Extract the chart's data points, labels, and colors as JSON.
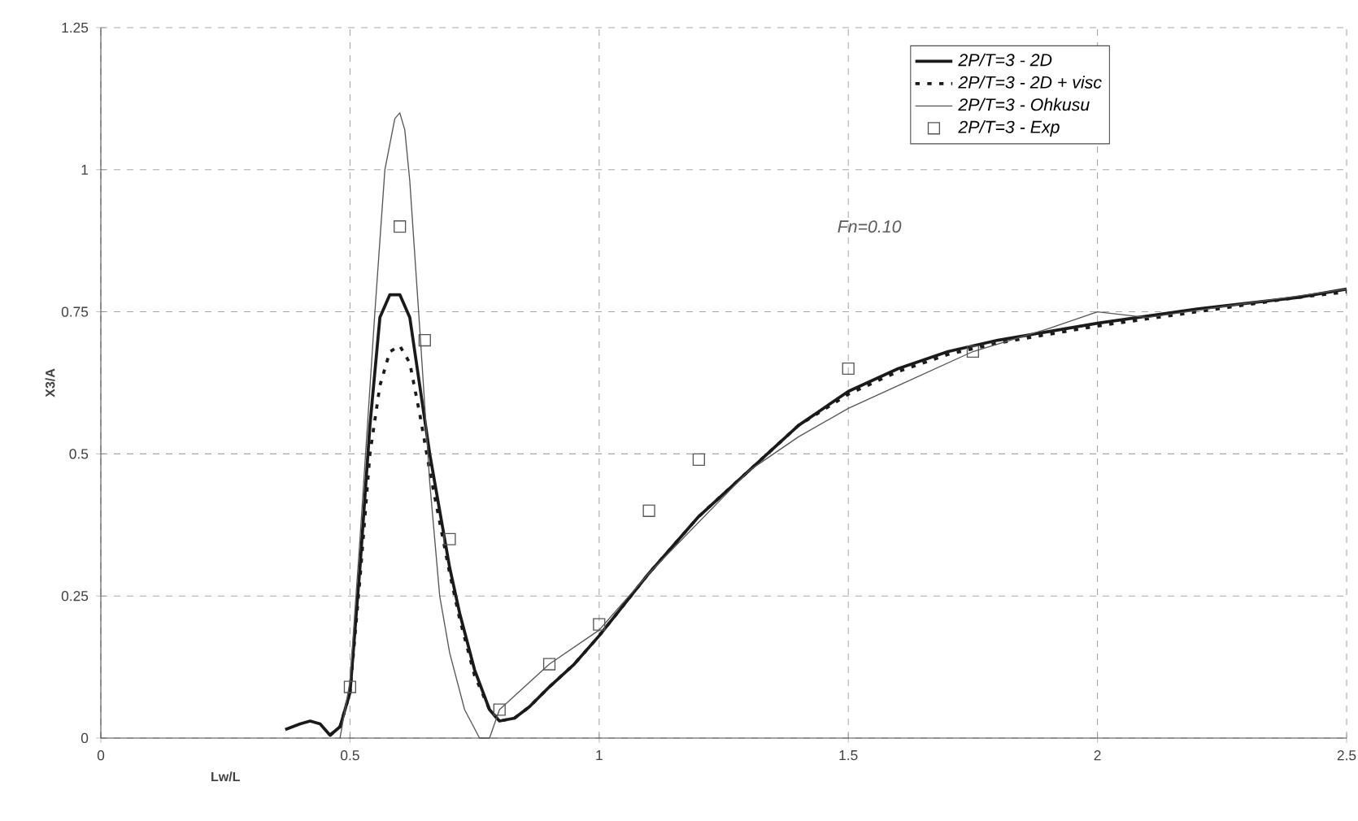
{
  "chart_data": {
    "type": "line",
    "xlabel": "Lw/L",
    "ylabel": "X3/A",
    "xlim": [
      0,
      2.5
    ],
    "xticks": [
      0,
      0.5,
      1,
      1.5,
      2,
      2.5
    ],
    "ylim": [
      0,
      1.25
    ],
    "yticks": [
      0,
      0.25,
      0.5,
      0.75,
      1,
      1.25
    ],
    "grid": true,
    "legend": "top right",
    "annotations": [
      "Fn=0.10"
    ],
    "series": [
      {
        "name": "2P/T=3 - 2D",
        "color": "#1a1a1a",
        "line_style": "solid",
        "marker": "none",
        "x": [
          0.37,
          0.4,
          0.42,
          0.44,
          0.46,
          0.48,
          0.5,
          0.52,
          0.54,
          0.56,
          0.58,
          0.6,
          0.62,
          0.64,
          0.66,
          0.68,
          0.7,
          0.72,
          0.75,
          0.78,
          0.8,
          0.83,
          0.86,
          0.9,
          0.95,
          1.0,
          1.1,
          1.2,
          1.3,
          1.4,
          1.5,
          1.6,
          1.7,
          1.8,
          1.9,
          2.0,
          2.2,
          2.4,
          2.5
        ],
        "values": [
          0.015,
          0.025,
          0.03,
          0.025,
          0.005,
          0.02,
          0.08,
          0.3,
          0.55,
          0.74,
          0.78,
          0.78,
          0.74,
          0.62,
          0.5,
          0.4,
          0.3,
          0.22,
          0.12,
          0.05,
          0.03,
          0.035,
          0.055,
          0.09,
          0.13,
          0.18,
          0.29,
          0.39,
          0.47,
          0.55,
          0.61,
          0.65,
          0.68,
          0.7,
          0.715,
          0.73,
          0.755,
          0.775,
          0.79
        ]
      },
      {
        "name": "2P/T=3 - 2D + visc",
        "color": "#1a1a1a",
        "line_style": "dashed",
        "marker": "none",
        "x": [
          0.46,
          0.48,
          0.5,
          0.52,
          0.54,
          0.56,
          0.58,
          0.6,
          0.62,
          0.64,
          0.66,
          0.68,
          0.7,
          0.72,
          0.75,
          0.78,
          0.8,
          0.83,
          0.86,
          0.9,
          0.95,
          1.0,
          1.1,
          1.2,
          1.3,
          1.4,
          1.5,
          1.6,
          1.7,
          1.8,
          1.9,
          2.0,
          2.2,
          2.4,
          2.5
        ],
        "values": [
          0.005,
          0.02,
          0.08,
          0.28,
          0.5,
          0.62,
          0.68,
          0.69,
          0.66,
          0.57,
          0.47,
          0.38,
          0.29,
          0.21,
          0.11,
          0.05,
          0.03,
          0.035,
          0.055,
          0.09,
          0.13,
          0.18,
          0.29,
          0.39,
          0.47,
          0.55,
          0.605,
          0.645,
          0.675,
          0.695,
          0.71,
          0.725,
          0.75,
          0.775,
          0.785
        ]
      },
      {
        "name": "2P/T=3 - Ohkusu",
        "color": "#555555",
        "line_style": "solid",
        "marker": "none",
        "x": [
          0.48,
          0.5,
          0.52,
          0.55,
          0.57,
          0.59,
          0.6,
          0.61,
          0.62,
          0.64,
          0.66,
          0.68,
          0.7,
          0.73,
          0.76,
          0.78,
          0.8,
          0.9,
          1.0,
          1.05,
          1.1,
          1.2,
          1.3,
          1.4,
          1.5,
          1.6,
          1.75,
          1.9,
          2.0,
          2.1,
          2.3,
          2.5
        ],
        "values": [
          0.0,
          0.1,
          0.35,
          0.75,
          1.0,
          1.09,
          1.1,
          1.07,
          0.98,
          0.72,
          0.45,
          0.25,
          0.15,
          0.05,
          0.0,
          0.0,
          0.05,
          0.13,
          0.19,
          0.24,
          0.29,
          0.38,
          0.47,
          0.53,
          0.58,
          0.62,
          0.68,
          0.72,
          0.75,
          0.74,
          0.765,
          0.79
        ]
      },
      {
        "name": "2P/T=3 - Exp",
        "type": "scatter",
        "color": "#555555",
        "marker": "square",
        "x": [
          0.5,
          0.6,
          0.65,
          0.7,
          0.8,
          0.9,
          1.0,
          1.1,
          1.2,
          1.5,
          1.75
        ],
        "values": [
          0.09,
          0.9,
          0.7,
          0.35,
          0.05,
          0.13,
          0.2,
          0.4,
          0.49,
          0.65,
          0.68
        ]
      }
    ]
  }
}
